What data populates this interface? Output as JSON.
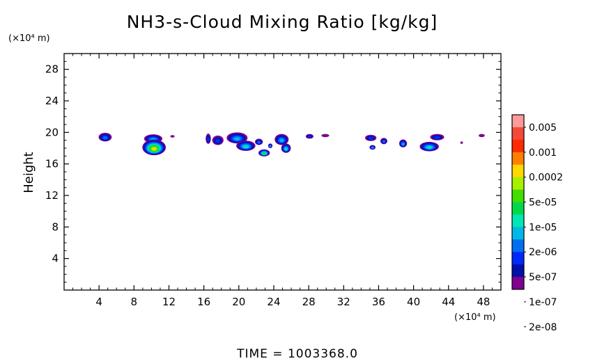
{
  "chart_data": {
    "type": "heatmap",
    "title": "NH3-s-Cloud Mixing Ratio [kg/kg]",
    "xlabel": "",
    "ylabel": "Height",
    "x_unit": "(×10⁴ m)",
    "y_unit": "(×10⁴ m)",
    "xlim": [
      0,
      50
    ],
    "ylim": [
      0,
      30
    ],
    "x_ticks": [
      4,
      8,
      12,
      16,
      20,
      24,
      28,
      32,
      36,
      40,
      44,
      48
    ],
    "y_ticks": [
      4,
      8,
      12,
      16,
      20,
      24,
      28
    ],
    "x_tick_labels": [
      "4",
      "8",
      "12",
      "16",
      "20",
      "24",
      "28",
      "32",
      "36",
      "40",
      "44",
      "48"
    ],
    "y_tick_labels": [
      "4",
      "8",
      "12",
      "16",
      "20",
      "24",
      "28"
    ],
    "footer": "TIME = 1003368.0",
    "colorbar": {
      "labels": [
        "0.005",
        "0.001",
        "0.0002",
        "5e-05",
        "1e-05",
        "2e-06",
        "5e-07",
        "1e-07",
        "2e-08"
      ],
      "colors": [
        "#ff9a9a",
        "#f44a3a",
        "#ff2a00",
        "#ff7f00",
        "#ffd800",
        "#a8f000",
        "#44dd00",
        "#00d84a",
        "#00e6b4",
        "#00b8e8",
        "#0070f0",
        "#0028ff",
        "#0010a8",
        "#800090"
      ]
    },
    "clouds": [
      {
        "x": 4.7,
        "y": 19.4,
        "w": 1.5,
        "h": 1.1,
        "peak": 4
      },
      {
        "x": 10.2,
        "y": 19.2,
        "w": 2.1,
        "h": 1.1,
        "peak": 5
      },
      {
        "x": 10.3,
        "y": 18.1,
        "w": 2.7,
        "h": 2.0,
        "peak": 10
      },
      {
        "x": 12.4,
        "y": 19.5,
        "w": 0.5,
        "h": 0.3,
        "peak": 1
      },
      {
        "x": 16.5,
        "y": 19.2,
        "w": 0.6,
        "h": 1.3,
        "peak": 3
      },
      {
        "x": 17.6,
        "y": 19.0,
        "w": 1.3,
        "h": 1.2,
        "peak": 3
      },
      {
        "x": 19.8,
        "y": 19.3,
        "w": 2.4,
        "h": 1.4,
        "peak": 5
      },
      {
        "x": 20.8,
        "y": 18.3,
        "w": 2.2,
        "h": 1.3,
        "peak": 6
      },
      {
        "x": 22.3,
        "y": 18.8,
        "w": 0.9,
        "h": 0.8,
        "peak": 4
      },
      {
        "x": 22.9,
        "y": 17.4,
        "w": 1.3,
        "h": 0.9,
        "peak": 8
      },
      {
        "x": 23.6,
        "y": 18.3,
        "w": 0.5,
        "h": 0.6,
        "peak": 5
      },
      {
        "x": 24.9,
        "y": 19.1,
        "w": 1.6,
        "h": 1.4,
        "peak": 5
      },
      {
        "x": 25.4,
        "y": 18.0,
        "w": 1.1,
        "h": 1.2,
        "peak": 6
      },
      {
        "x": 28.1,
        "y": 19.5,
        "w": 0.9,
        "h": 0.6,
        "peak": 3
      },
      {
        "x": 29.9,
        "y": 19.6,
        "w": 0.9,
        "h": 0.4,
        "peak": 1
      },
      {
        "x": 35.1,
        "y": 19.3,
        "w": 1.3,
        "h": 0.8,
        "peak": 3
      },
      {
        "x": 35.3,
        "y": 18.1,
        "w": 0.7,
        "h": 0.6,
        "peak": 5
      },
      {
        "x": 36.6,
        "y": 18.9,
        "w": 0.8,
        "h": 0.8,
        "peak": 4
      },
      {
        "x": 38.8,
        "y": 18.6,
        "w": 0.9,
        "h": 1.0,
        "peak": 5
      },
      {
        "x": 41.8,
        "y": 18.2,
        "w": 2.2,
        "h": 1.2,
        "peak": 6
      },
      {
        "x": 42.7,
        "y": 19.4,
        "w": 1.6,
        "h": 0.8,
        "peak": 3
      },
      {
        "x": 45.5,
        "y": 18.7,
        "w": 0.3,
        "h": 0.3,
        "peak": 1
      },
      {
        "x": 47.8,
        "y": 19.6,
        "w": 0.7,
        "h": 0.4,
        "peak": 1
      }
    ]
  }
}
